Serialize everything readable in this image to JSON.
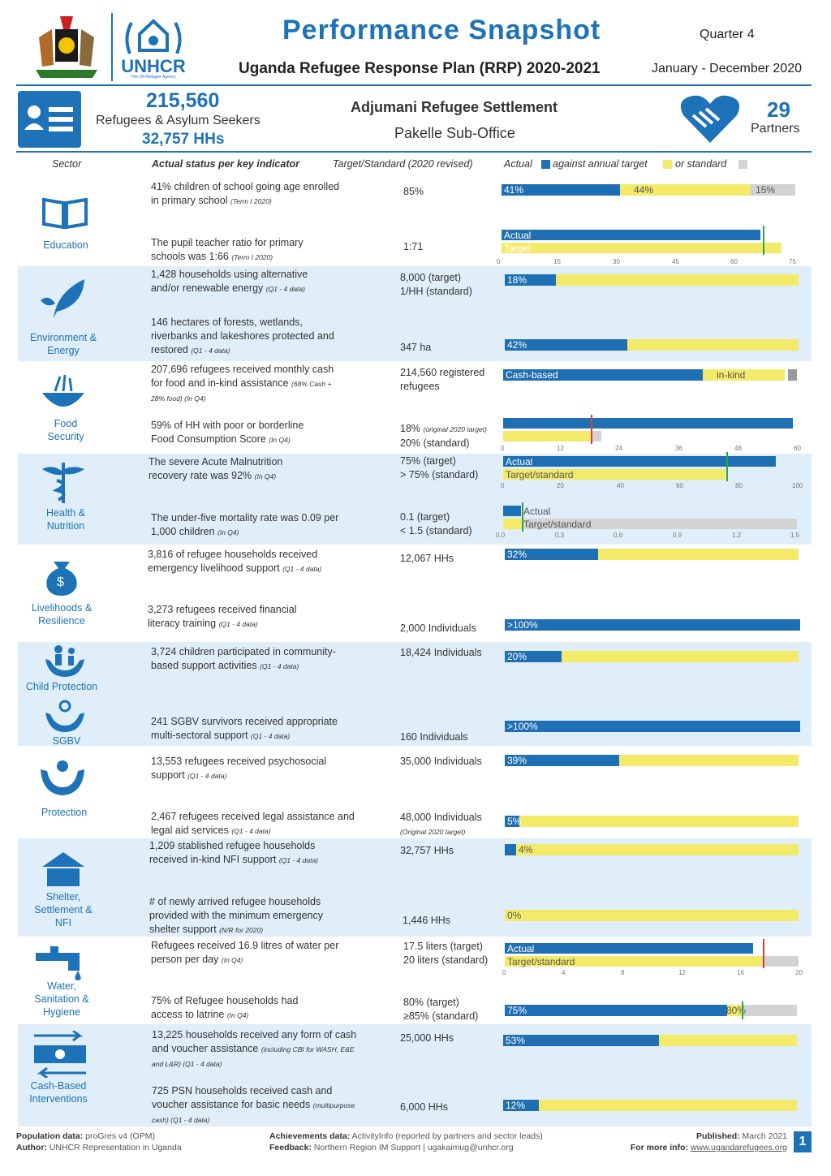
{
  "header": {
    "title": "Performance Snapshot",
    "subtitle": "Uganda Refugee Response Plan (RRP) 2020-2021",
    "quarter": "Quarter 4",
    "period": "January - December 2020",
    "unhcr": "UNHCR",
    "unhcr_tag": "The UN Refugee Agency"
  },
  "summary": {
    "refugees": "215,560",
    "refugees_label": "Refugees & Asylum Seekers",
    "hhs": "32,757 HHs",
    "settlement": "Adjumani Refugee Settlement",
    "office": "Pakelle Sub-Office",
    "partners": "29",
    "partners_label": "Partners"
  },
  "columns": {
    "sector": "Sector",
    "actual": "Actual status per key indicator",
    "target": "Target/Standard (2020 revised)",
    "legend_actual": "Actual",
    "legend_against": "against annual target",
    "legend_or": "or standard"
  },
  "sectors": {
    "education": "Education",
    "environment": "Environment & Energy",
    "food": "Food Security",
    "health": "Health & Nutrition",
    "livelihoods": "Livelihoods & Resilience",
    "child": "Child Protection",
    "sgbv": "SGBV",
    "protection": "Protection",
    "shelter": "Shelter, Settlement & NFI",
    "wash": "Water, Sanitation & Hygiene",
    "cbi": "Cash-Based Interventions"
  },
  "rows": [
    {
      "text": "41% children of school going age enrolled in primary school",
      "note": "(Term I 2020)",
      "target": "85%",
      "a": "41%",
      "b": "44%",
      "c": "15%"
    },
    {
      "text": "The pupil teacher ratio for primary schools was 1:66",
      "note": "(Term I 2020)",
      "target": "1:71",
      "actual": 66,
      "tg": 71,
      "axis": [
        "0",
        "15",
        "30",
        "45",
        "60",
        "75"
      ],
      "l1": "Actual",
      "l2": "Target"
    },
    {
      "text": "1,428  households using alternative and/or renewable energy",
      "note": "(Q1 - 4 data)",
      "target": "8,000 (target)",
      "target2": "1/HH (standard)",
      "a": "18%"
    },
    {
      "text": "146 hectares of forests, wetlands, riverbanks and lakeshores protected and restored",
      "note": "(Q1 - 4 data)",
      "target": "347 ha",
      "a": "42%"
    },
    {
      "text": "207,696 refugees received monthly cash for food and in-kind assistance",
      "note": "(68% Cash + 28% food) (In Q4)",
      "target": "214,560 registered refugees",
      "l1": "Cash-based",
      "l2": "in-kind"
    },
    {
      "text": "59% of HH with poor or borderline Food Consumption Score",
      "note": "(In Q4)",
      "target": "18%",
      "target_note": "(original 2020 target)",
      "target2": "20% (standard)",
      "actual": 59,
      "axis": [
        "0",
        "12",
        "24",
        "36",
        "48",
        "60"
      ]
    },
    {
      "text": "The severe Acute Malnutrition recovery rate was 92%",
      "note": "(In Q4)",
      "target": "75% (target)",
      "target2": "> 75% (standard)",
      "actual": 92,
      "axis": [
        "0",
        "20",
        "40",
        "60",
        "80",
        "100"
      ],
      "l1": "Actual",
      "l2": "Target/standard"
    },
    {
      "text": "The under-five mortality rate was 0.09 per 1,000 children",
      "note": "(In Q4)",
      "target": "0.1 (target)",
      "target2": "< 1.5 (standard)",
      "actual": 0.09,
      "axis": [
        "0.0",
        "0.3",
        "0.6",
        "0.9",
        "1.2",
        "1.5"
      ],
      "l1": "Actual",
      "l2": "Target/standard"
    },
    {
      "text": "3,816 of refugee households received emergency livelihood support",
      "note": "(Q1 - 4 data)",
      "target": "12,067 HHs",
      "a": "32%"
    },
    {
      "text": "3,273 refugees received financial literacy training",
      "note": "(Q1 - 4 data)",
      "target": "2,000 Individuals",
      "a": ">100%"
    },
    {
      "text": "3,724 children participated in community-based support activities",
      "note": "(Q1 - 4 data)",
      "target": "18,424 Individuals",
      "a": "20%"
    },
    {
      "text": "241 SGBV survivors received appropriate multi-sectoral support",
      "note": "(Q1 - 4 data)",
      "target": "160 Individuals",
      "a": ">100%"
    },
    {
      "text": "13,553 refugees received psychosocial support",
      "note": "(Q1 - 4 data)",
      "target": "35,000 Individuals",
      "a": "39%"
    },
    {
      "text": "2,467 refugees received legal assistance and legal aid services",
      "note": "(Q1 - 4 data)",
      "target": "48,000 Individuals",
      "target_note": "(Original 2020 target)",
      "a": "5%"
    },
    {
      "text": "1,209 stablished refugee households received in-kind NFI support",
      "note": "(Q1 - 4 data)",
      "target": "32,757 HHs",
      "a": "4%"
    },
    {
      "text": "# of newly arrived refugee households provided with the minimum emergency shelter support",
      "note": "(N/R for 2020)",
      "target": "1,446 HHs",
      "a": "0%"
    },
    {
      "text": "Refugees received 16.9 litres of water per person per day",
      "note": "(In Q4)",
      "target": "17.5 liters (target)",
      "target2": "20 liters (standard)",
      "actual": 16.9,
      "axis": [
        "0",
        "4",
        "8",
        "12",
        "16",
        "20"
      ],
      "l1": "Actual",
      "l2": "Target/standard"
    },
    {
      "text": "75% of Refugee households had access to latrine",
      "note": "(In Q4)",
      "target": "80% (target)",
      "target2": "≥85% (standard)",
      "a": "75%",
      "b": "80%"
    },
    {
      "text": "13,225 households received any form of cash and voucher assistance",
      "note": "(including CBI for WASH, E&E and L&R) (Q1 - 4 data)",
      "target": "25,000 HHs",
      "a": "53%"
    },
    {
      "text": "725 PSN households received cash and voucher assistance for basic needs",
      "note": "(multipurpose cash) (Q1 - 4 data)",
      "target": "6,000 HHs",
      "a": "12%"
    }
  ],
  "footer": {
    "pop_label": "Population data:",
    "pop": "proGres v4 (OPM)",
    "author_label": "Author:",
    "author": "UNHCR Representation in Uganda",
    "ach_label": "Achievements data:",
    "ach": "ActivityInfo (reported by partners and sector leads)",
    "fb_label": "Feedback:",
    "fb": "Northern Region IM Support | ugakaimug@unhcr.org",
    "pub_label": "Published:",
    "pub": "March 2021",
    "info_label": "For more info:",
    "info": "www.ugandarefugees.org",
    "page": "1"
  },
  "colors": {
    "blue": "#1f6fb4",
    "yellow": "#f4ea6a",
    "grey": "#d3d3d3",
    "band": "#dfeef8"
  }
}
